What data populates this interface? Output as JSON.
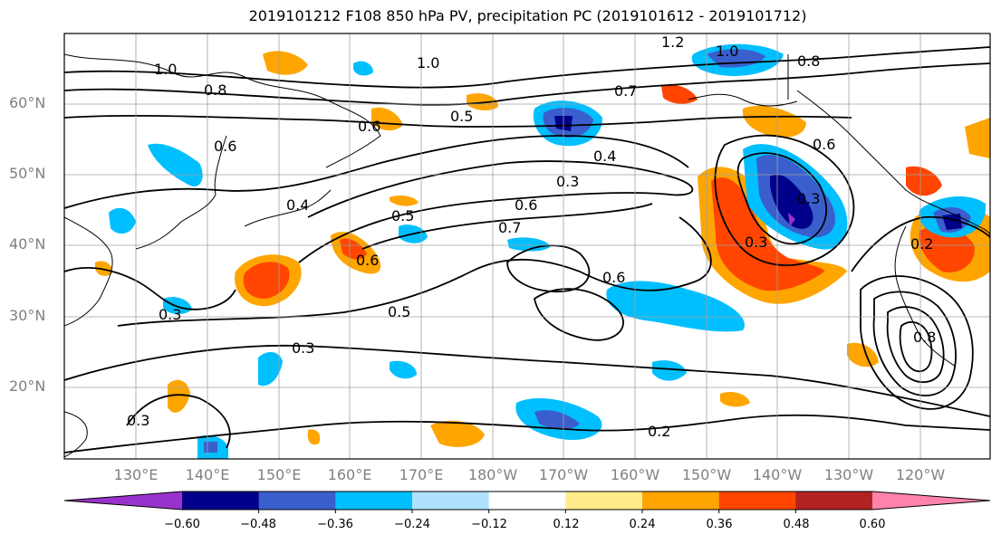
{
  "title": "2019101212 F108 850 hPa PV, precipitation PC (2019101612 - 2019101712)",
  "lat_labels": [
    "60°N",
    "50°N",
    "40°N",
    "30°N",
    "20°N"
  ],
  "lon_labels": [
    "130°E",
    "140°E",
    "150°E",
    "160°E",
    "170°E",
    "180°W",
    "170°W",
    "160°W",
    "150°W",
    "140°W",
    "130°W",
    "120°W"
  ],
  "colorbar": {
    "ticks": [
      "−0.60",
      "−0.48",
      "−0.36",
      "−0.24",
      "−0.12",
      "0.12",
      "0.24",
      "0.36",
      "0.48",
      "0.60"
    ],
    "colors": [
      "#9932CC",
      "#00008B",
      "#3A5FCD",
      "#00BFFF",
      "#B0E2FF",
      "#FFFFFF",
      "#FFEC8B",
      "#FFA500",
      "#FF4500",
      "#B22222",
      "#FF82AB"
    ]
  },
  "contour_labels": [
    "1.0",
    "1.0",
    "1.2",
    "1.0",
    "0.8",
    "0.8",
    "0.5",
    "0.7",
    "0.6",
    "0.6",
    "0.4",
    "0.3",
    "0.5",
    "0.6",
    "0.7",
    "0.6",
    "0.4",
    "0.3",
    "0.6",
    "0.3",
    "0.5",
    "0.3",
    "0.3",
    "0.2",
    "0.6",
    "0.8",
    "0.3",
    "0.2"
  ]
}
